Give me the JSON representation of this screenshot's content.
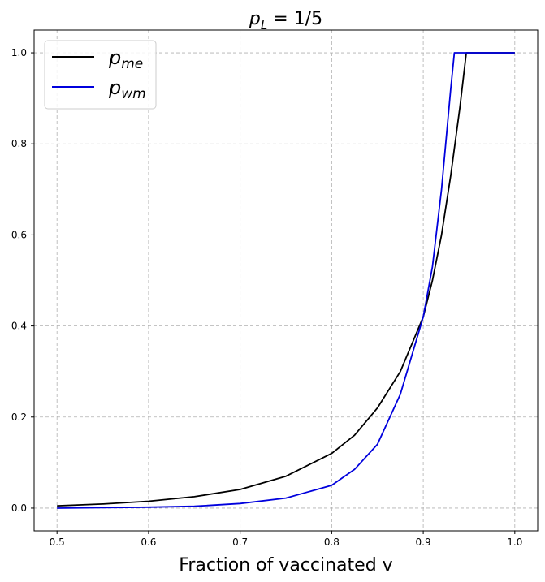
{
  "chart_data": {
    "type": "line",
    "title": {
      "main": "p",
      "sub": "L",
      "rest": " = 1/5"
    },
    "xlabel": "Fraction of vaccinated v",
    "ylabel": "",
    "xlim": [
      0.475,
      1.025
    ],
    "ylim": [
      -0.05,
      1.05
    ],
    "xticks": [
      0.5,
      0.6,
      0.7,
      0.8,
      0.9,
      1.0
    ],
    "xtick_labels": [
      "0.5",
      "0.6",
      "0.7",
      "0.8",
      "0.9",
      "1.0"
    ],
    "yticks": [
      0.0,
      0.2,
      0.4,
      0.6,
      0.8,
      1.0
    ],
    "ytick_labels": [
      "0.0",
      "0.2",
      "0.4",
      "0.6",
      "0.8",
      "1.0"
    ],
    "grid": true,
    "legend_position": "top-left",
    "series": [
      {
        "name": "p_me",
        "label_main": "p",
        "label_sub": "me",
        "color": "#000000",
        "x": [
          0.5,
          0.55,
          0.6,
          0.65,
          0.7,
          0.75,
          0.8,
          0.825,
          0.85,
          0.875,
          0.9,
          0.91,
          0.92,
          0.93,
          0.94,
          0.947,
          1.0
        ],
        "y": [
          0.005,
          0.009,
          0.015,
          0.025,
          0.041,
          0.07,
          0.12,
          0.16,
          0.22,
          0.3,
          0.42,
          0.5,
          0.6,
          0.73,
          0.88,
          1.0,
          1.0
        ]
      },
      {
        "name": "p_wm",
        "label_main": "p",
        "label_sub": "wm",
        "color": "#0000dd",
        "x": [
          0.5,
          0.55,
          0.6,
          0.65,
          0.7,
          0.75,
          0.8,
          0.825,
          0.85,
          0.875,
          0.9,
          0.91,
          0.92,
          0.93,
          0.934,
          1.0
        ],
        "y": [
          0.0,
          0.001,
          0.002,
          0.004,
          0.01,
          0.022,
          0.05,
          0.085,
          0.14,
          0.25,
          0.42,
          0.53,
          0.7,
          0.92,
          1.0,
          1.0
        ]
      }
    ]
  }
}
